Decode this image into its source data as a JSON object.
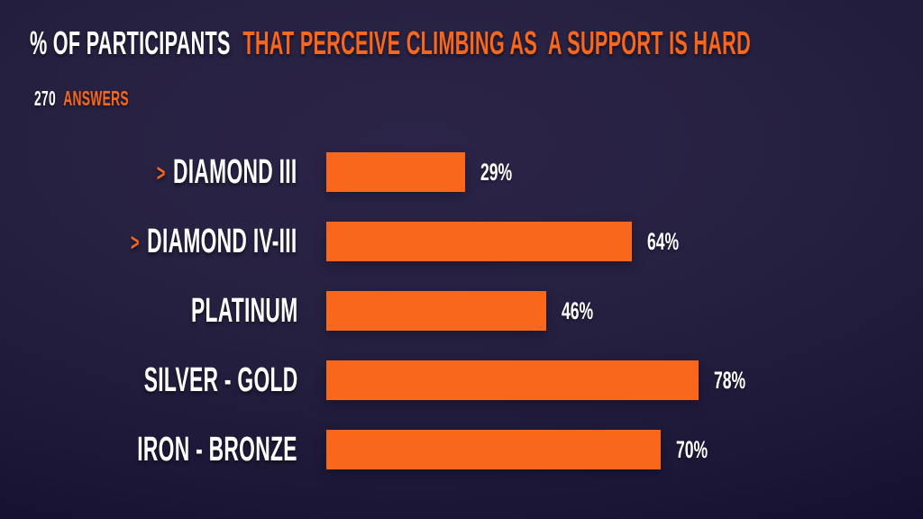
{
  "colors": {
    "accent_orange": "#f8671c",
    "text_white": "#ffffff",
    "bg_center": "#2b2448",
    "bg_edge": "#110c27"
  },
  "header": {
    "title_white": "% OF PARTICIPANTS",
    "title_orange": "THAT PERCEIVE CLIMBING AS  A SUPPORT IS HARD",
    "answers_count": "270",
    "answers_label": "ANSWERS"
  },
  "chart_data": {
    "type": "bar",
    "orientation": "horizontal",
    "title": "% OF PARTICIPANTS THAT PERCEIVE CLIMBING AS  A SUPPORT IS HARD",
    "subtitle": "270 ANSWERS",
    "categories": [
      "DIAMOND III",
      "DIAMOND IV-III",
      "PLATINUM",
      "SILVER - GOLD",
      "IRON - BRONZE"
    ],
    "values": [
      29,
      64,
      46,
      78,
      70
    ],
    "value_labels": [
      "29%",
      "64%",
      "46%",
      "78%",
      "70%"
    ],
    "arrow_prefix": [
      true,
      true,
      false,
      false,
      false
    ],
    "arrow_glyph": ">",
    "xlim": [
      0,
      100
    ],
    "bar_color": "#f8671c",
    "label_color": "#ffffff",
    "grid": false,
    "legend_position": "none"
  }
}
